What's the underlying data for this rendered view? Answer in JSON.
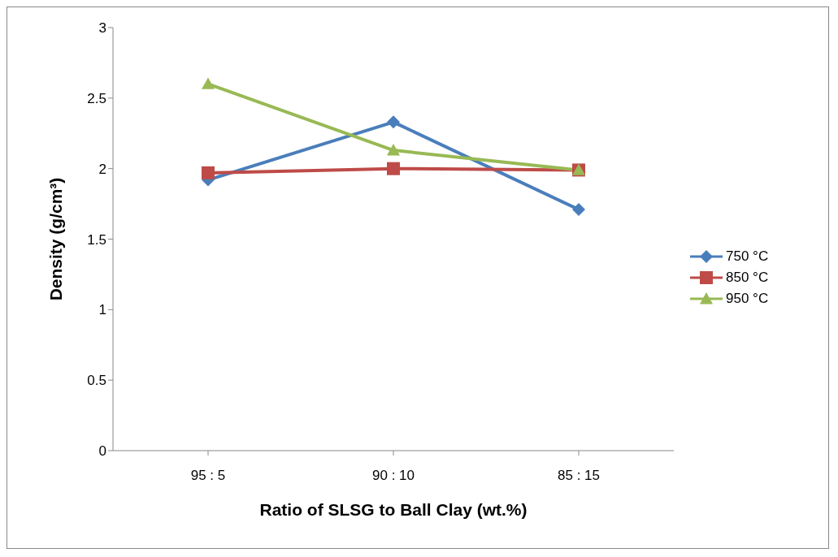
{
  "chart_data": {
    "type": "line",
    "xlabel": "Ratio  of SLSG to Ball Clay  (wt.%)",
    "ylabel": "Density (g/cm³)",
    "categories": [
      "95 : 5",
      "90 : 10",
      "85 : 15"
    ],
    "series": [
      {
        "name": "750 °C",
        "color": "#4a7ebb",
        "marker": "diamond",
        "values": [
          1.92,
          2.33,
          1.71
        ]
      },
      {
        "name": "850 °C",
        "color": "#be4b48",
        "marker": "square",
        "values": [
          1.97,
          2.0,
          1.99
        ]
      },
      {
        "name": "950 °C",
        "color": "#98b954",
        "marker": "triangle",
        "values": [
          2.6,
          2.13,
          1.99
        ]
      }
    ],
    "ylim": [
      0,
      3
    ],
    "yticks": [
      0,
      0.5,
      1,
      1.5,
      2,
      2.5,
      3
    ],
    "grid": false,
    "legend": "right"
  }
}
